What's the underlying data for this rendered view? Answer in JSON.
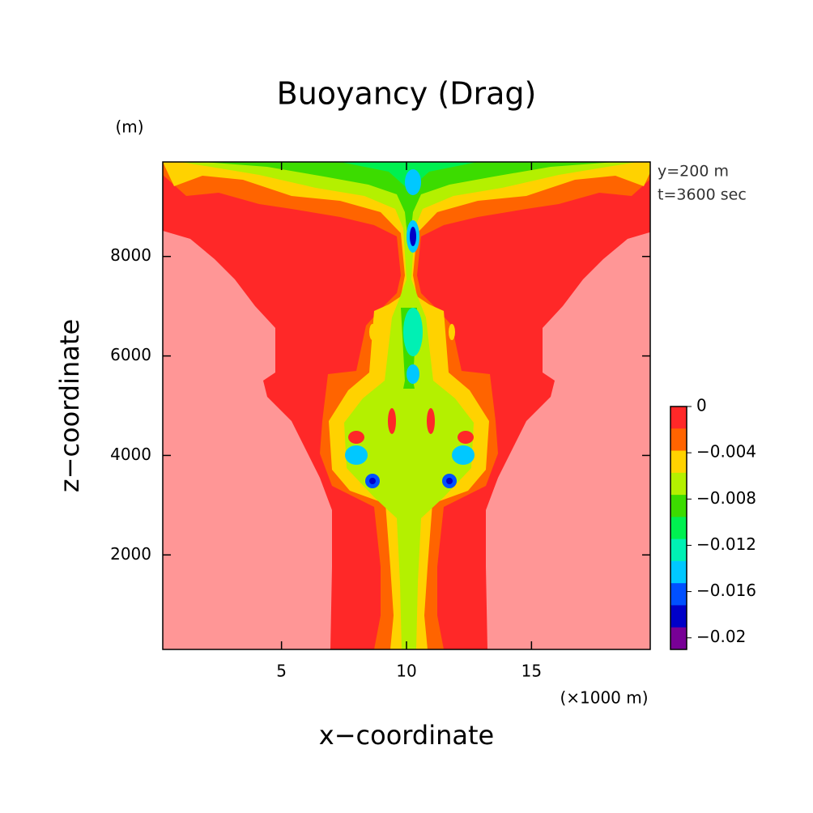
{
  "chart_data": {
    "type": "contour",
    "title": "Buoyancy (Drag)",
    "x_label": "x−coordinate",
    "y_label": "z−coordinate",
    "x_unit": "(×1000 m)",
    "y_unit": "(m)",
    "annotations": [
      "y=200 m",
      "t=3600 sec"
    ],
    "xlim": [
      0.25,
      19.75
    ],
    "xticks": [
      5,
      10,
      15
    ],
    "ylim": [
      100,
      9900
    ],
    "yticks": [
      2000,
      4000,
      6000,
      8000
    ],
    "colorbar": {
      "colors": [
        "#ff2828",
        "#ff6400",
        "#ffd200",
        "#b4f000",
        "#3cdc00",
        "#00f050",
        "#00f0b4",
        "#00c8ff",
        "#0050ff",
        "#0000c8",
        "#780096"
      ],
      "clim": [
        -0.021,
        0
      ],
      "ticks": [
        0,
        {
          "value": -0.004,
          "label": "−0.004"
        },
        {
          "value": -0.008,
          "label": "−0.008"
        },
        {
          "value": -0.012,
          "label": "−0.012"
        },
        {
          "value": -0.016,
          "label": "−0.016"
        },
        {
          "value": -0.02,
          "label": "−0.02"
        }
      ]
    }
  }
}
